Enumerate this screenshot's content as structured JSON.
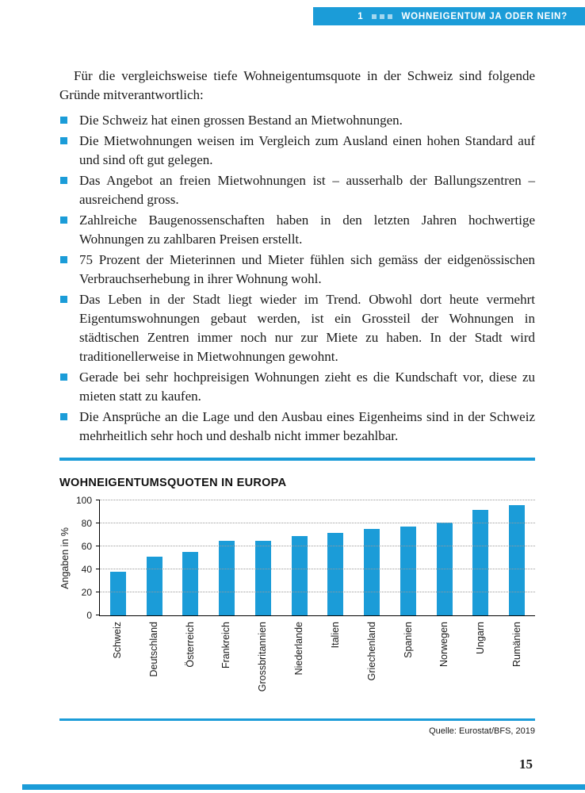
{
  "colors": {
    "accent": "#1b9cd8",
    "text": "#1a1a1a"
  },
  "header": {
    "number": "1",
    "title": "WOHNEIGENTUM JA ODER NEIN?"
  },
  "intro": "Für die vergleichsweise tiefe Wohneigentumsquote in der Schweiz sind folgende Gründe mitverantwortlich:",
  "bullets": [
    "Die Schweiz hat einen grossen Bestand an Mietwohnungen.",
    "Die Mietwohnungen weisen im Vergleich zum Ausland einen hohen Standard auf und sind oft gut gelegen.",
    "Das Angebot an freien Mietwohnungen ist – ausserhalb der Ballungszentren – ausreichend gross.",
    "Zahlreiche Baugenossenschaften haben in den letzten Jahren hochwertige Wohnungen zu zahlbaren Preisen erstellt.",
    "75 Prozent der Mieterinnen und Mieter fühlen sich gemäss der eidgenössischen Verbrauchserhebung in ihrer Wohnung wohl.",
    "Das Leben in der Stadt liegt wieder im Trend. Obwohl dort heute vermehrt Eigentumswohnungen gebaut werden, ist ein Grossteil der Wohnungen in städtischen Zentren immer noch nur zur Miete zu haben. In der Stadt wird traditionellerweise in Mietwohnungen gewohnt.",
    "Gerade bei sehr hochpreisigen Wohnungen zieht es die Kundschaft vor, diese zu mieten statt zu kaufen.",
    "Die Ansprüche an die Lage und den Ausbau eines Eigenheims sind in der Schweiz mehrheitlich sehr hoch und deshalb nicht immer bezahlbar."
  ],
  "chart_data": {
    "type": "bar",
    "title": "WOHNEIGENTUMSQUOTEN IN EUROPA",
    "ylabel": "Angaben in %",
    "categories": [
      "Schweiz",
      "Deutschland",
      "Österreich",
      "Frankreich",
      "Grossbritannien",
      "Niederlande",
      "Italien",
      "Griechenland",
      "Spanien",
      "Norwegen",
      "Ungarn",
      "Rumänien"
    ],
    "values": [
      38,
      51,
      55,
      65,
      65,
      69,
      72,
      75,
      77,
      81,
      92,
      96
    ],
    "ylim": [
      0,
      100
    ],
    "yticks": [
      0,
      20,
      40,
      60,
      80,
      100
    ],
    "grid": true,
    "bar_color": "#1b9cd8",
    "source": "Quelle: Eurostat/BFS, 2019"
  },
  "page_number": "15"
}
